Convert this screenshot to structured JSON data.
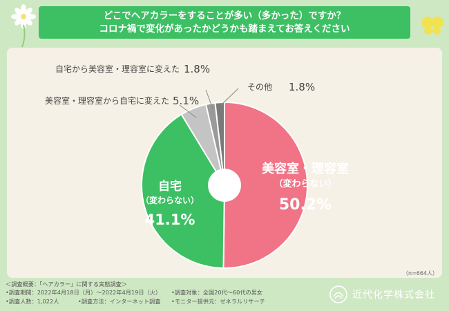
{
  "title": {
    "line1": "どこでヘアカラーをすることが多い（多かった）ですか？",
    "line2": "コロナ禍で変化があったかどうかも踏まえてお答えください"
  },
  "chart_data": {
    "type": "pie",
    "sample_size": "（n=664人）",
    "slices": [
      {
        "name": "美容室・理容室",
        "sub": "（変わらない）",
        "value": 50.2,
        "display": "50.2%",
        "color": "#f07386"
      },
      {
        "name": "自宅",
        "sub": "（変わらない）",
        "value": 41.1,
        "display": "41.1%",
        "color": "#3dbf63"
      },
      {
        "name": "美容室・理容室から自宅に変えた",
        "sub": "",
        "value": 5.1,
        "display": "5.1%",
        "color": "#c4c4c4"
      },
      {
        "name": "自宅から美容室・理容室に変えた",
        "sub": "",
        "value": 1.8,
        "display": "1.8%",
        "color": "#9a9a9a"
      },
      {
        "name": "その他",
        "sub": "",
        "value": 1.8,
        "display": "1.8%",
        "color": "#7a7a7a"
      }
    ]
  },
  "footer": {
    "overview": "＜調査概要：「ヘアカラー」に関する実態調査＞",
    "period": "•調査期間：2022年4月18日（月）〜2022年4月19日（火）",
    "target": "•調査対象：全国20代〜60代の男女",
    "count": "•調査人数：1,022人",
    "method": "•調査方法：インターネット調査",
    "provider": "•モニター提供元：ゼネラルリサーチ"
  },
  "brand": {
    "name": "近代化学株式会社"
  }
}
